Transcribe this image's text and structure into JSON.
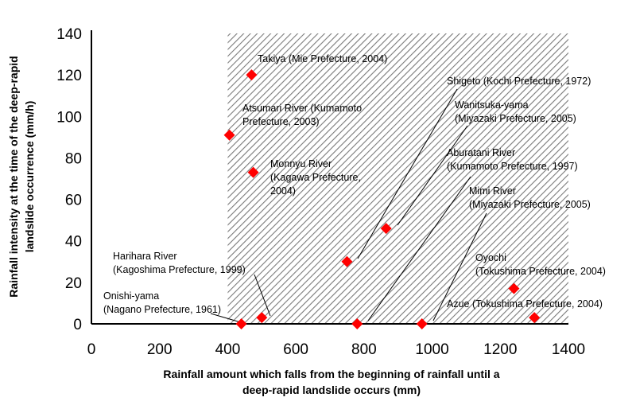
{
  "chart_data": {
    "type": "scatter",
    "title": "",
    "xlabel_lines": [
      "Rainfall amount which falls from the beginning of rainfall until a",
      "deep-rapid landslide occurs (mm)"
    ],
    "ylabel_lines": [
      "Rainfall intensity at the time of the deep-rapid",
      "landslide occurrence (mm/h)"
    ],
    "xlim": [
      0,
      1400
    ],
    "ylim": [
      0,
      140
    ],
    "xticks": [
      "0",
      "200",
      "400",
      "600",
      "800",
      "1000",
      "1200",
      "1400"
    ],
    "yticks": [
      "0",
      "20",
      "40",
      "60",
      "80",
      "100",
      "120",
      "140"
    ],
    "shaded_region": {
      "x_from": 400,
      "x_to": 1400,
      "y_from": 0,
      "y_to": 140
    },
    "marker_color": "#ff0000",
    "points": [
      {
        "x": 470,
        "y": 120,
        "label": [
          "Takiya (Mie Prefecture, 2004)"
        ]
      },
      {
        "x": 405,
        "y": 91,
        "label": [
          "Atsumari River (Kumamoto",
          "Prefecture, 2003)"
        ]
      },
      {
        "x": 475,
        "y": 73,
        "label": [
          "Monnyu River",
          "(Kagawa Prefecture,",
          "2004)"
        ]
      },
      {
        "x": 750,
        "y": 30,
        "label": [
          "Shigeto (Kochi Prefecture, 1972)"
        ]
      },
      {
        "x": 865,
        "y": 46,
        "label": [
          "Wanitsuka-yama",
          "(Miyazaki Prefecture, 2005)"
        ]
      },
      {
        "x": 780,
        "y": 0,
        "label": [
          "Aburatani River",
          "(Kumamoto Prefecture, 1997)"
        ]
      },
      {
        "x": 970,
        "y": 0,
        "label": [
          "Mimi River",
          "(Miyazaki Prefecture, 2005)"
        ]
      },
      {
        "x": 1240,
        "y": 17,
        "label": [
          "Oyochi",
          "(Tokushima Prefecture, 2004)"
        ]
      },
      {
        "x": 1300,
        "y": 3,
        "label": [
          "Azue (Tokushima Prefecture, 2004)"
        ]
      },
      {
        "x": 500,
        "y": 3,
        "label": [
          "Harihara River",
          "(Kagoshima Prefecture, 1999)"
        ]
      },
      {
        "x": 440,
        "y": 0,
        "label": [
          "Onishi-yama",
          "(Nagano Prefecture, 1961)"
        ]
      }
    ]
  }
}
